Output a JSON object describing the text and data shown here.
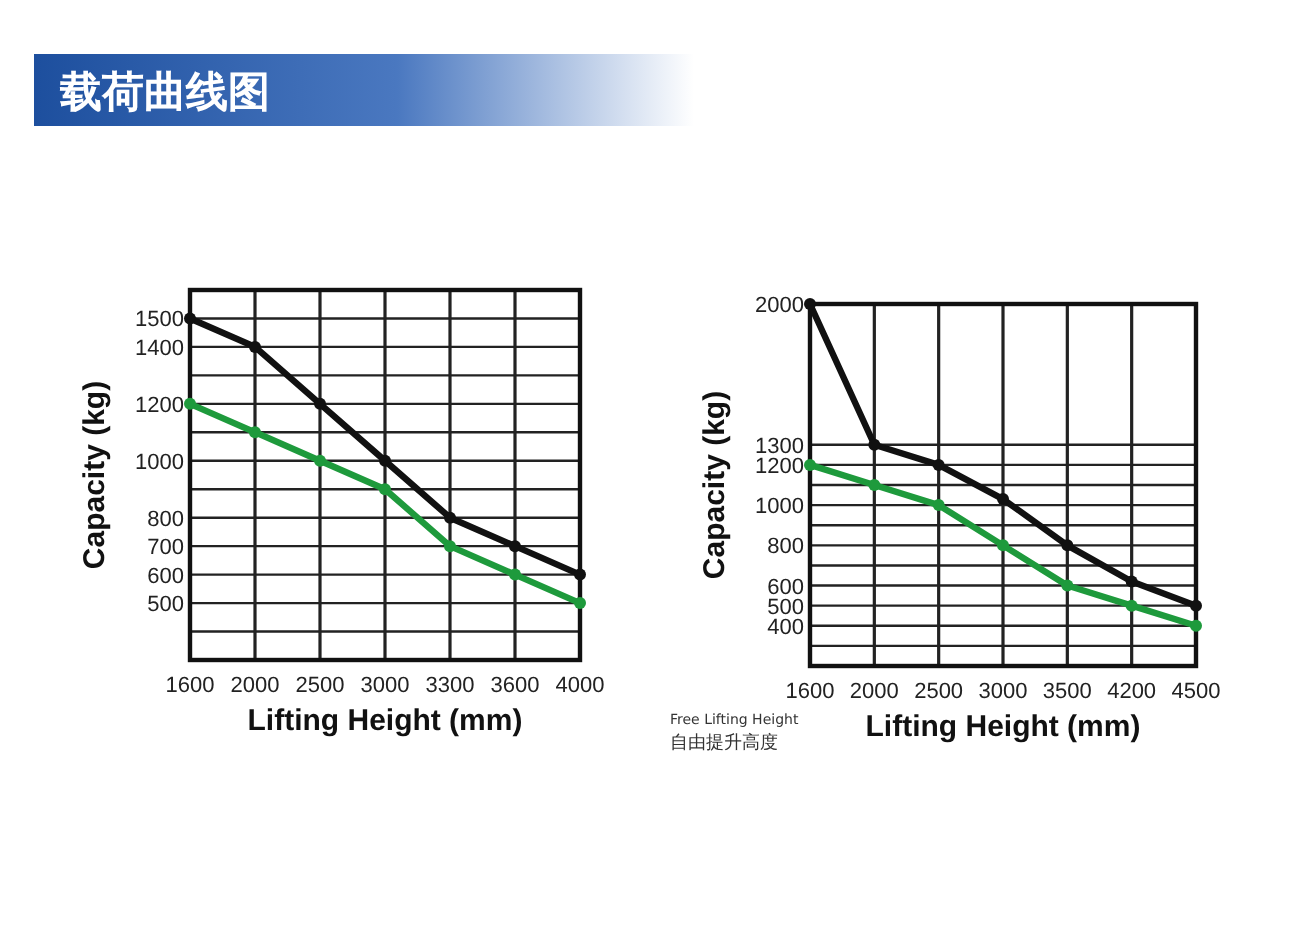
{
  "chart_data": [
    {
      "type": "line",
      "title": "载荷曲线图",
      "xlabel": "Lifting Height (mm)",
      "ylabel": "Capacity (kg)",
      "categories": [
        "1600",
        "2000",
        "2500",
        "3000",
        "3300",
        "3600",
        "4000"
      ],
      "series": [
        {
          "color": "#111111",
          "values": [
            1500,
            1400,
            1200,
            1000,
            800,
            700,
            600
          ]
        },
        {
          "color": "#1e9a3c",
          "values": [
            1200,
            1100,
            1000,
            900,
            700,
            600,
            500
          ]
        }
      ],
      "ylim": [
        300,
        1600
      ],
      "yticks": [
        {
          "value": 400,
          "label": null
        },
        500,
        600,
        700,
        800,
        {
          "value": 900,
          "label": null
        },
        1000,
        {
          "value": 1100,
          "label": null
        },
        1200,
        {
          "value": 1300,
          "label": null
        },
        1400,
        1500
      ],
      "grid": true,
      "marker": "circle",
      "line_style": "solid"
    },
    {
      "type": "line",
      "xlabel": "Lifting Height (mm)",
      "ylabel": "Capacity (kg)",
      "categories": [
        "1600",
        "2000",
        "2500",
        "3000",
        "3500",
        "4200",
        "4500"
      ],
      "series": [
        {
          "color": "#111111",
          "values": [
            2000,
            1300,
            1200,
            1030,
            800,
            620,
            500
          ]
        },
        {
          "color": "#1e9a3c",
          "values": [
            1200,
            1100,
            1000,
            800,
            600,
            500,
            400
          ]
        }
      ],
      "ylim": [
        200,
        2000
      ],
      "yticks": [
        {
          "value": 300,
          "label": null
        },
        400,
        500,
        600,
        {
          "value": 700,
          "label": null
        },
        800,
        {
          "value": 900,
          "label": null
        },
        1000,
        {
          "value": 1100,
          "label": null
        },
        1200,
        1300,
        2000
      ],
      "annotations": [
        "Free Lifting Height",
        "自由提升高度"
      ],
      "grid": true,
      "marker": "circle",
      "line_style": "solid"
    }
  ]
}
